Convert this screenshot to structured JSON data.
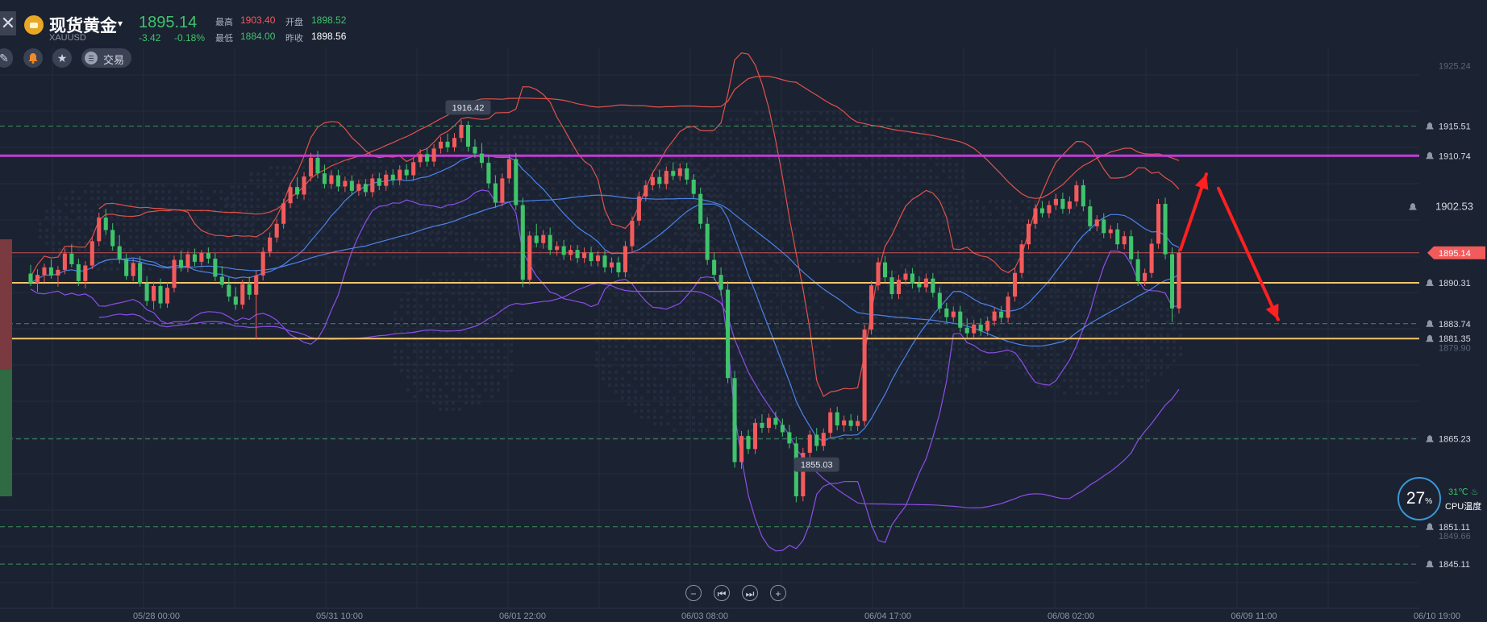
{
  "header": {
    "symbol_name": "现货黄金",
    "symbol_code": "XAUUSD",
    "price": "1895.14",
    "change": "-3.42",
    "change_pct": "-0.18%",
    "high_label": "最高",
    "high": "1903.40",
    "open_label": "开盘",
    "open": "1898.52",
    "low_label": "最低",
    "low": "1884.00",
    "prev_close_label": "昨收",
    "prev_close": "1898.56",
    "trade_label": "交易",
    "close_glyph": "✕",
    "caret_glyph": "▾"
  },
  "icons": [
    "close-icon",
    "gold-symbol-icon",
    "chevron-down-icon",
    "draw-tool-icon",
    "bell-icon",
    "star-icon",
    "menu-icon",
    "zoom-out-icon",
    "step-back-icon",
    "step-forward-icon",
    "zoom-in-icon",
    "alarm-bell-icon",
    "flame-icon"
  ],
  "colors": {
    "background": "#1b2232",
    "up": "#f25b5b",
    "down": "#3fc36b",
    "price_line": "#f25b5b",
    "magenta_level": "#c33bd6",
    "orange_level": "#f5c36c",
    "bb_upper": "#e0534a",
    "bb_mid": "#4b84e8",
    "bb_lower": "#8c4fe8",
    "arrows": "#ff2020"
  },
  "chart_data": {
    "type": "candlestick",
    "title": "",
    "y_range": [
      1838,
      1928
    ],
    "y_ticks": [
      "1925.24",
      "1879.90",
      "1849.66"
    ],
    "x_labels": [
      "05/28 00:00",
      "05/31 10:00",
      "06/01 22:00",
      "06/03 08:00",
      "06/04 17:00",
      "06/08 02:00",
      "06/09 11:00",
      "06/10 19:00"
    ],
    "price_levels": [
      {
        "value": "1915.51",
        "style": "dashed-green",
        "alarm": true
      },
      {
        "value": "1910.74",
        "style": "magenta-solid",
        "alarm": true
      },
      {
        "value": "1902.53",
        "style": "alarm-label",
        "alarm": true
      },
      {
        "value": "1895.14",
        "style": "current-price",
        "alarm": false
      },
      {
        "value": "1890.31",
        "style": "orange-solid",
        "alarm": true
      },
      {
        "value": "1883.74",
        "style": "dashed-green",
        "alarm": true
      },
      {
        "value": "1881.35",
        "style": "orange-solid",
        "alarm": true
      },
      {
        "value": "1865.23",
        "style": "dashed-green",
        "alarm": true
      },
      {
        "value": "1851.11",
        "style": "dashed-green",
        "alarm": true
      },
      {
        "value": "1845.11",
        "style": "dashed-green",
        "alarm": true
      }
    ],
    "annotations": [
      {
        "text": "1916.42",
        "index": 64,
        "kind": "high"
      },
      {
        "text": "1855.03",
        "index": 115,
        "kind": "low"
      }
    ],
    "candles": [
      {
        "o": 1891.8,
        "h": 1893.2,
        "l": 1889.8,
        "c": 1890.3
      },
      {
        "o": 1890.3,
        "h": 1892.5,
        "l": 1888.9,
        "c": 1891.6
      },
      {
        "o": 1891.6,
        "h": 1893.4,
        "l": 1890.4,
        "c": 1892.8
      },
      {
        "o": 1892.8,
        "h": 1894.1,
        "l": 1891.0,
        "c": 1891.5
      },
      {
        "o": 1891.5,
        "h": 1893.0,
        "l": 1889.7,
        "c": 1892.4
      },
      {
        "o": 1892.4,
        "h": 1895.8,
        "l": 1891.7,
        "c": 1895.0
      },
      {
        "o": 1895.0,
        "h": 1896.5,
        "l": 1892.8,
        "c": 1893.3
      },
      {
        "o": 1893.3,
        "h": 1894.2,
        "l": 1889.8,
        "c": 1890.6
      },
      {
        "o": 1890.6,
        "h": 1893.8,
        "l": 1889.4,
        "c": 1893.1
      },
      {
        "o": 1893.1,
        "h": 1897.7,
        "l": 1892.5,
        "c": 1897.0
      },
      {
        "o": 1897.0,
        "h": 1901.6,
        "l": 1896.2,
        "c": 1900.8
      },
      {
        "o": 1900.8,
        "h": 1902.2,
        "l": 1898.0,
        "c": 1898.8
      },
      {
        "o": 1898.8,
        "h": 1899.9,
        "l": 1895.5,
        "c": 1896.2
      },
      {
        "o": 1896.2,
        "h": 1898.0,
        "l": 1893.4,
        "c": 1894.1
      },
      {
        "o": 1894.1,
        "h": 1895.0,
        "l": 1890.8,
        "c": 1891.4
      },
      {
        "o": 1891.4,
        "h": 1894.2,
        "l": 1890.6,
        "c": 1893.5
      },
      {
        "o": 1893.5,
        "h": 1894.6,
        "l": 1889.7,
        "c": 1890.2
      },
      {
        "o": 1890.2,
        "h": 1891.4,
        "l": 1886.6,
        "c": 1887.4
      },
      {
        "o": 1887.4,
        "h": 1890.5,
        "l": 1886.0,
        "c": 1889.8
      },
      {
        "o": 1889.8,
        "h": 1891.0,
        "l": 1886.2,
        "c": 1887.0
      },
      {
        "o": 1887.0,
        "h": 1890.4,
        "l": 1886.3,
        "c": 1889.5
      },
      {
        "o": 1889.5,
        "h": 1894.7,
        "l": 1888.8,
        "c": 1894.0
      },
      {
        "o": 1894.0,
        "h": 1895.5,
        "l": 1892.1,
        "c": 1892.8
      },
      {
        "o": 1892.8,
        "h": 1895.4,
        "l": 1892.0,
        "c": 1894.9
      },
      {
        "o": 1894.9,
        "h": 1895.8,
        "l": 1893.0,
        "c": 1893.7
      },
      {
        "o": 1893.7,
        "h": 1895.6,
        "l": 1892.9,
        "c": 1895.1
      },
      {
        "o": 1895.1,
        "h": 1896.0,
        "l": 1893.4,
        "c": 1894.2
      },
      {
        "o": 1894.2,
        "h": 1895.1,
        "l": 1890.6,
        "c": 1891.3
      },
      {
        "o": 1891.3,
        "h": 1893.0,
        "l": 1889.5,
        "c": 1890.0
      },
      {
        "o": 1890.0,
        "h": 1891.2,
        "l": 1887.3,
        "c": 1888.1
      },
      {
        "o": 1888.1,
        "h": 1889.6,
        "l": 1886.0,
        "c": 1886.8
      },
      {
        "o": 1886.8,
        "h": 1890.8,
        "l": 1886.1,
        "c": 1890.1
      },
      {
        "o": 1890.1,
        "h": 1891.3,
        "l": 1887.6,
        "c": 1888.4
      },
      {
        "o": 1888.4,
        "h": 1892.3,
        "l": 1881.2,
        "c": 1891.5
      },
      {
        "o": 1891.5,
        "h": 1896.0,
        "l": 1890.7,
        "c": 1895.3
      },
      {
        "o": 1895.3,
        "h": 1898.4,
        "l": 1894.5,
        "c": 1897.6
      },
      {
        "o": 1897.6,
        "h": 1900.5,
        "l": 1896.8,
        "c": 1899.8
      },
      {
        "o": 1899.8,
        "h": 1903.8,
        "l": 1899.0,
        "c": 1903.1
      },
      {
        "o": 1903.1,
        "h": 1906.4,
        "l": 1902.3,
        "c": 1905.7
      },
      {
        "o": 1905.7,
        "h": 1907.3,
        "l": 1903.8,
        "c": 1904.5
      },
      {
        "o": 1904.5,
        "h": 1908.1,
        "l": 1903.7,
        "c": 1907.4
      },
      {
        "o": 1907.4,
        "h": 1911.2,
        "l": 1906.6,
        "c": 1910.4
      },
      {
        "o": 1910.4,
        "h": 1911.5,
        "l": 1907.1,
        "c": 1907.9
      },
      {
        "o": 1907.9,
        "h": 1909.3,
        "l": 1905.5,
        "c": 1906.2
      },
      {
        "o": 1906.2,
        "h": 1908.4,
        "l": 1905.4,
        "c": 1907.6
      },
      {
        "o": 1907.6,
        "h": 1908.5,
        "l": 1905.0,
        "c": 1905.8
      },
      {
        "o": 1905.8,
        "h": 1907.4,
        "l": 1904.9,
        "c": 1906.7
      },
      {
        "o": 1906.7,
        "h": 1907.6,
        "l": 1904.4,
        "c": 1905.1
      },
      {
        "o": 1905.1,
        "h": 1906.9,
        "l": 1904.3,
        "c": 1906.2
      },
      {
        "o": 1906.2,
        "h": 1907.0,
        "l": 1904.2,
        "c": 1904.9
      },
      {
        "o": 1904.9,
        "h": 1907.8,
        "l": 1904.1,
        "c": 1907.1
      },
      {
        "o": 1907.1,
        "h": 1908.0,
        "l": 1905.2,
        "c": 1905.9
      },
      {
        "o": 1905.9,
        "h": 1908.4,
        "l": 1905.1,
        "c": 1907.7
      },
      {
        "o": 1907.7,
        "h": 1908.6,
        "l": 1906.0,
        "c": 1906.8
      },
      {
        "o": 1906.8,
        "h": 1909.2,
        "l": 1906.0,
        "c": 1908.5
      },
      {
        "o": 1908.5,
        "h": 1909.4,
        "l": 1906.9,
        "c": 1907.6
      },
      {
        "o": 1907.6,
        "h": 1910.4,
        "l": 1906.8,
        "c": 1909.7
      },
      {
        "o": 1909.7,
        "h": 1911.8,
        "l": 1908.9,
        "c": 1911.0
      },
      {
        "o": 1911.0,
        "h": 1912.0,
        "l": 1909.0,
        "c": 1909.8
      },
      {
        "o": 1909.8,
        "h": 1912.6,
        "l": 1909.0,
        "c": 1911.9
      },
      {
        "o": 1911.9,
        "h": 1913.8,
        "l": 1911.1,
        "c": 1913.0
      },
      {
        "o": 1913.0,
        "h": 1914.3,
        "l": 1911.3,
        "c": 1912.1
      },
      {
        "o": 1912.1,
        "h": 1914.4,
        "l": 1911.4,
        "c": 1913.6
      },
      {
        "o": 1913.6,
        "h": 1916.42,
        "l": 1912.9,
        "c": 1915.7
      },
      {
        "o": 1915.7,
        "h": 1916.3,
        "l": 1911.4,
        "c": 1912.2
      },
      {
        "o": 1912.2,
        "h": 1913.4,
        "l": 1910.4,
        "c": 1911.1
      },
      {
        "o": 1911.1,
        "h": 1912.8,
        "l": 1908.8,
        "c": 1909.6
      },
      {
        "o": 1909.6,
        "h": 1910.8,
        "l": 1905.5,
        "c": 1906.3
      },
      {
        "o": 1906.3,
        "h": 1907.6,
        "l": 1902.4,
        "c": 1903.2
      },
      {
        "o": 1903.2,
        "h": 1907.9,
        "l": 1902.6,
        "c": 1907.1
      },
      {
        "o": 1907.1,
        "h": 1911.0,
        "l": 1906.3,
        "c": 1910.2
      },
      {
        "o": 1910.2,
        "h": 1911.2,
        "l": 1902.0,
        "c": 1902.8
      },
      {
        "o": 1902.8,
        "h": 1904.0,
        "l": 1889.6,
        "c": 1890.8
      },
      {
        "o": 1890.8,
        "h": 1898.6,
        "l": 1890.0,
        "c": 1897.9
      },
      {
        "o": 1897.9,
        "h": 1899.8,
        "l": 1896.0,
        "c": 1896.7
      },
      {
        "o": 1896.7,
        "h": 1898.8,
        "l": 1895.8,
        "c": 1898.0
      },
      {
        "o": 1898.0,
        "h": 1899.2,
        "l": 1894.8,
        "c": 1895.6
      },
      {
        "o": 1895.6,
        "h": 1897.0,
        "l": 1894.7,
        "c": 1896.2
      },
      {
        "o": 1896.2,
        "h": 1897.2,
        "l": 1894.0,
        "c": 1894.8
      },
      {
        "o": 1894.8,
        "h": 1896.4,
        "l": 1893.9,
        "c": 1895.6
      },
      {
        "o": 1895.6,
        "h": 1896.4,
        "l": 1893.5,
        "c": 1894.3
      },
      {
        "o": 1894.3,
        "h": 1896.0,
        "l": 1893.5,
        "c": 1895.2
      },
      {
        "o": 1895.2,
        "h": 1896.1,
        "l": 1893.0,
        "c": 1893.8
      },
      {
        "o": 1893.8,
        "h": 1895.4,
        "l": 1893.0,
        "c": 1894.7
      },
      {
        "o": 1894.7,
        "h": 1895.5,
        "l": 1892.0,
        "c": 1892.8
      },
      {
        "o": 1892.8,
        "h": 1894.4,
        "l": 1891.9,
        "c": 1893.6
      },
      {
        "o": 1893.6,
        "h": 1894.5,
        "l": 1891.2,
        "c": 1892.0
      },
      {
        "o": 1892.0,
        "h": 1897.0,
        "l": 1891.2,
        "c": 1896.2
      },
      {
        "o": 1896.2,
        "h": 1901.0,
        "l": 1895.4,
        "c": 1900.3
      },
      {
        "o": 1900.3,
        "h": 1905.0,
        "l": 1899.5,
        "c": 1904.2
      },
      {
        "o": 1904.2,
        "h": 1906.8,
        "l": 1903.4,
        "c": 1906.0
      },
      {
        "o": 1906.0,
        "h": 1908.0,
        "l": 1905.2,
        "c": 1907.3
      },
      {
        "o": 1907.3,
        "h": 1908.5,
        "l": 1905.5,
        "c": 1906.2
      },
      {
        "o": 1906.2,
        "h": 1909.0,
        "l": 1905.3,
        "c": 1908.3
      },
      {
        "o": 1908.3,
        "h": 1909.7,
        "l": 1906.8,
        "c": 1907.5
      },
      {
        "o": 1907.5,
        "h": 1909.5,
        "l": 1906.7,
        "c": 1908.7
      },
      {
        "o": 1908.7,
        "h": 1909.6,
        "l": 1906.1,
        "c": 1906.9
      },
      {
        "o": 1906.9,
        "h": 1907.8,
        "l": 1903.8,
        "c": 1904.6
      },
      {
        "o": 1904.6,
        "h": 1905.6,
        "l": 1899.0,
        "c": 1899.8
      },
      {
        "o": 1899.8,
        "h": 1900.9,
        "l": 1893.2,
        "c": 1894.0
      },
      {
        "o": 1894.0,
        "h": 1895.2,
        "l": 1890.8,
        "c": 1891.6
      },
      {
        "o": 1891.6,
        "h": 1892.8,
        "l": 1888.3,
        "c": 1889.2
      },
      {
        "o": 1889.2,
        "h": 1890.6,
        "l": 1874.2,
        "c": 1875.0
      },
      {
        "o": 1875.0,
        "h": 1876.2,
        "l": 1860.6,
        "c": 1861.5
      },
      {
        "o": 1861.5,
        "h": 1866.5,
        "l": 1860.4,
        "c": 1865.7
      },
      {
        "o": 1865.7,
        "h": 1866.7,
        "l": 1862.8,
        "c": 1863.6
      },
      {
        "o": 1863.6,
        "h": 1868.5,
        "l": 1862.8,
        "c": 1867.8
      },
      {
        "o": 1867.8,
        "h": 1869.2,
        "l": 1866.2,
        "c": 1867.0
      },
      {
        "o": 1867.0,
        "h": 1869.3,
        "l": 1866.2,
        "c": 1868.6
      },
      {
        "o": 1868.6,
        "h": 1869.6,
        "l": 1866.8,
        "c": 1867.5
      },
      {
        "o": 1867.5,
        "h": 1868.5,
        "l": 1865.6,
        "c": 1866.3
      },
      {
        "o": 1866.3,
        "h": 1867.5,
        "l": 1863.7,
        "c": 1864.5
      },
      {
        "o": 1864.5,
        "h": 1865.6,
        "l": 1855.03,
        "c": 1856.0
      },
      {
        "o": 1856.0,
        "h": 1863.8,
        "l": 1855.2,
        "c": 1863.0
      },
      {
        "o": 1863.0,
        "h": 1866.6,
        "l": 1862.2,
        "c": 1865.9
      },
      {
        "o": 1865.9,
        "h": 1867.0,
        "l": 1863.3,
        "c": 1864.1
      },
      {
        "o": 1864.1,
        "h": 1866.9,
        "l": 1863.3,
        "c": 1866.2
      },
      {
        "o": 1866.2,
        "h": 1870.2,
        "l": 1865.4,
        "c": 1869.5
      },
      {
        "o": 1869.5,
        "h": 1870.4,
        "l": 1866.6,
        "c": 1867.4
      },
      {
        "o": 1867.4,
        "h": 1869.0,
        "l": 1866.4,
        "c": 1868.2
      },
      {
        "o": 1868.2,
        "h": 1869.2,
        "l": 1866.5,
        "c": 1867.3
      },
      {
        "o": 1867.3,
        "h": 1869.0,
        "l": 1866.5,
        "c": 1868.1
      },
      {
        "o": 1868.1,
        "h": 1883.6,
        "l": 1867.3,
        "c": 1882.8
      },
      {
        "o": 1882.8,
        "h": 1890.6,
        "l": 1882.0,
        "c": 1889.9
      },
      {
        "o": 1889.9,
        "h": 1894.4,
        "l": 1889.1,
        "c": 1893.6
      },
      {
        "o": 1893.6,
        "h": 1894.6,
        "l": 1890.4,
        "c": 1891.2
      },
      {
        "o": 1891.2,
        "h": 1892.3,
        "l": 1887.7,
        "c": 1888.5
      },
      {
        "o": 1888.5,
        "h": 1891.6,
        "l": 1887.7,
        "c": 1890.8
      },
      {
        "o": 1890.8,
        "h": 1892.6,
        "l": 1890.0,
        "c": 1891.8
      },
      {
        "o": 1891.8,
        "h": 1892.7,
        "l": 1889.4,
        "c": 1890.2
      },
      {
        "o": 1890.2,
        "h": 1891.4,
        "l": 1888.8,
        "c": 1889.6
      },
      {
        "o": 1889.6,
        "h": 1891.8,
        "l": 1888.8,
        "c": 1891.0
      },
      {
        "o": 1891.0,
        "h": 1891.9,
        "l": 1888.0,
        "c": 1888.7
      },
      {
        "o": 1888.7,
        "h": 1889.6,
        "l": 1885.5,
        "c": 1886.2
      },
      {
        "o": 1886.2,
        "h": 1887.1,
        "l": 1884.0,
        "c": 1884.8
      },
      {
        "o": 1884.8,
        "h": 1886.5,
        "l": 1884.0,
        "c": 1885.7
      },
      {
        "o": 1885.7,
        "h": 1886.6,
        "l": 1882.4,
        "c": 1883.1
      },
      {
        "o": 1883.1,
        "h": 1884.6,
        "l": 1881.5,
        "c": 1882.2
      },
      {
        "o": 1882.2,
        "h": 1884.4,
        "l": 1881.4,
        "c": 1883.6
      },
      {
        "o": 1883.6,
        "h": 1884.6,
        "l": 1881.8,
        "c": 1882.6
      },
      {
        "o": 1882.6,
        "h": 1884.9,
        "l": 1881.8,
        "c": 1884.2
      },
      {
        "o": 1884.2,
        "h": 1886.4,
        "l": 1883.4,
        "c": 1885.7
      },
      {
        "o": 1885.7,
        "h": 1886.6,
        "l": 1883.9,
        "c": 1884.7
      },
      {
        "o": 1884.7,
        "h": 1888.8,
        "l": 1883.9,
        "c": 1888.1
      },
      {
        "o": 1888.1,
        "h": 1892.6,
        "l": 1887.3,
        "c": 1891.9
      },
      {
        "o": 1891.9,
        "h": 1897.2,
        "l": 1891.1,
        "c": 1896.5
      },
      {
        "o": 1896.5,
        "h": 1900.5,
        "l": 1895.7,
        "c": 1899.8
      },
      {
        "o": 1899.8,
        "h": 1903.0,
        "l": 1899.0,
        "c": 1902.3
      },
      {
        "o": 1902.3,
        "h": 1903.4,
        "l": 1900.8,
        "c": 1901.5
      },
      {
        "o": 1901.5,
        "h": 1903.5,
        "l": 1900.7,
        "c": 1902.8
      },
      {
        "o": 1902.8,
        "h": 1904.6,
        "l": 1902.0,
        "c": 1903.8
      },
      {
        "o": 1903.8,
        "h": 1904.8,
        "l": 1901.4,
        "c": 1902.2
      },
      {
        "o": 1902.2,
        "h": 1904.2,
        "l": 1901.4,
        "c": 1903.4
      },
      {
        "o": 1903.4,
        "h": 1906.7,
        "l": 1902.6,
        "c": 1906.0
      },
      {
        "o": 1906.0,
        "h": 1906.9,
        "l": 1901.8,
        "c": 1902.6
      },
      {
        "o": 1902.6,
        "h": 1903.7,
        "l": 1898.6,
        "c": 1899.4
      },
      {
        "o": 1899.4,
        "h": 1901.2,
        "l": 1898.6,
        "c": 1900.5
      },
      {
        "o": 1900.5,
        "h": 1901.5,
        "l": 1897.5,
        "c": 1898.3
      },
      {
        "o": 1898.3,
        "h": 1899.6,
        "l": 1897.4,
        "c": 1898.9
      },
      {
        "o": 1898.9,
        "h": 1899.9,
        "l": 1895.7,
        "c": 1896.5
      },
      {
        "o": 1896.5,
        "h": 1898.6,
        "l": 1895.7,
        "c": 1897.8
      },
      {
        "o": 1897.8,
        "h": 1898.8,
        "l": 1893.3,
        "c": 1894.1
      },
      {
        "o": 1894.1,
        "h": 1895.5,
        "l": 1889.8,
        "c": 1890.6
      },
      {
        "o": 1890.6,
        "h": 1892.6,
        "l": 1889.8,
        "c": 1891.9
      },
      {
        "o": 1891.9,
        "h": 1897.4,
        "l": 1891.1,
        "c": 1896.6
      },
      {
        "o": 1896.6,
        "h": 1903.8,
        "l": 1895.8,
        "c": 1903.0
      },
      {
        "o": 1903.0,
        "h": 1904.0,
        "l": 1894.1,
        "c": 1894.9
      },
      {
        "o": 1894.9,
        "h": 1896.0,
        "l": 1884.0,
        "c": 1886.2
      },
      {
        "o": 1886.2,
        "h": 1895.8,
        "l": 1885.4,
        "c": 1895.14
      }
    ]
  }
}
